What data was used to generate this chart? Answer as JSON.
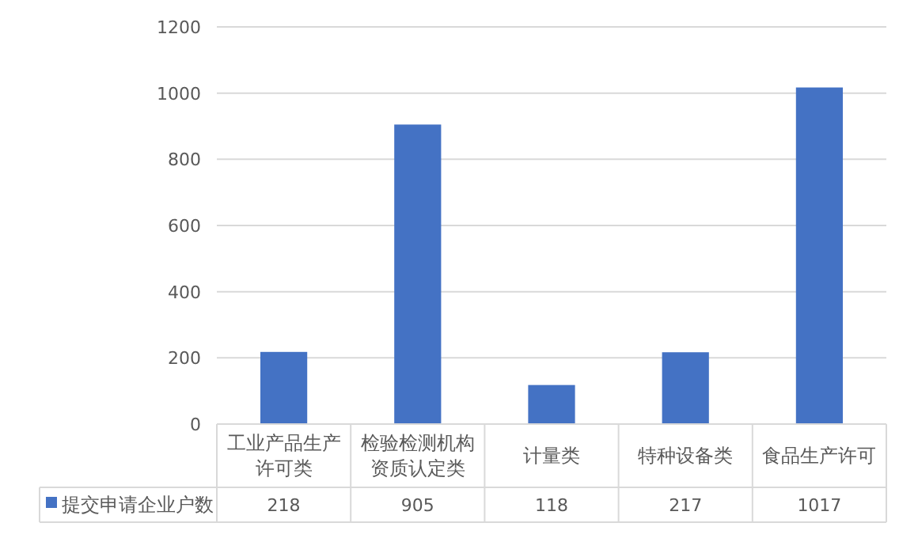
{
  "chart_data": {
    "type": "bar",
    "categories": [
      "工业产品生产许可类",
      "检验检测机构资质认定类",
      "计量类",
      "特种设备类",
      "食品生产许可"
    ],
    "series": [
      {
        "name": "提交申请企业户数",
        "color": "#4472c4",
        "values": [
          218,
          905,
          118,
          217,
          1017
        ]
      }
    ],
    "ylim": [
      0,
      1200
    ],
    "yticks": [
      0,
      200,
      400,
      600,
      800,
      1000,
      1200
    ],
    "grid": "y",
    "data_labels": true,
    "legend": "bottom"
  }
}
